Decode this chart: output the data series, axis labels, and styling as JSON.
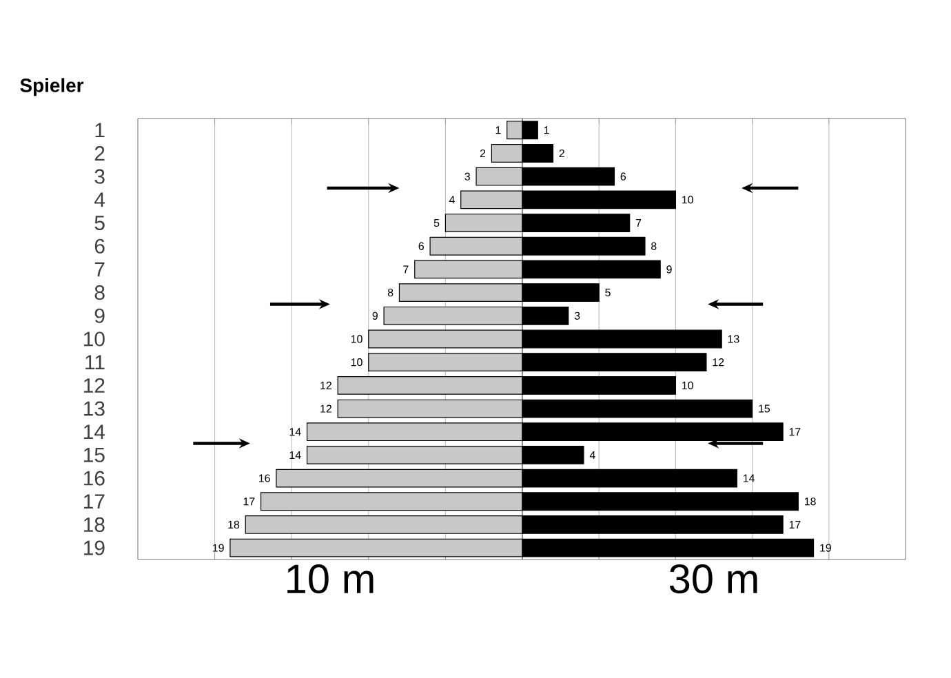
{
  "chart_data": [
    {
      "type": "bar",
      "orientation": "horizontal",
      "ylabel": "Spieler",
      "grid": "x",
      "tick_labels": "y",
      "categories": [
        "1",
        "2",
        "3",
        "4",
        "5",
        "6",
        "7",
        "8",
        "9",
        "10",
        "11",
        "12",
        "13",
        "14",
        "15",
        "16",
        "17",
        "18",
        "19"
      ],
      "xlim": [
        25,
        0
      ],
      "xticks": [
        {
          "value": 20,
          "label": null
        },
        {
          "value": 15,
          "label": null
        },
        {
          "value": 10,
          "label": null
        },
        {
          "value": 5,
          "label": null
        }
      ],
      "series": [
        {
          "name": "10 m",
          "color": "#c8c8c8",
          "values": [
            1,
            2,
            3,
            4,
            5,
            6,
            7,
            8,
            9,
            10,
            10,
            12,
            12,
            14,
            14,
            16,
            17,
            18,
            19
          ]
        }
      ],
      "data_labels": true
    },
    {
      "type": "bar",
      "orientation": "horizontal",
      "grid": "x",
      "tick_labels": false,
      "categories": [
        "1",
        "2",
        "3",
        "4",
        "5",
        "6",
        "7",
        "8",
        "9",
        "10",
        "11",
        "12",
        "13",
        "14",
        "15",
        "16",
        "17",
        "18",
        "19"
      ],
      "xlim": [
        0,
        25
      ],
      "xticks": [
        {
          "value": 5,
          "label": null
        },
        {
          "value": 10,
          "label": null
        },
        {
          "value": 15,
          "label": null
        },
        {
          "value": 20,
          "label": null
        }
      ],
      "series": [
        {
          "name": "30 m",
          "color": "#000000",
          "values": [
            1,
            2,
            6,
            10,
            7,
            8,
            9,
            5,
            3,
            13,
            12,
            10,
            15,
            17,
            4,
            14,
            18,
            17,
            19
          ]
        }
      ],
      "data_labels": true
    }
  ]
}
